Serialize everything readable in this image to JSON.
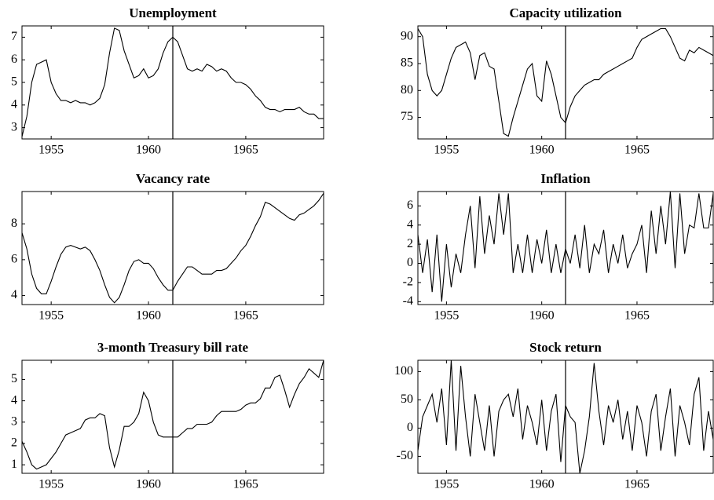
{
  "chart_data": [
    {
      "type": "line",
      "title": "Unemployment",
      "color": "#000000",
      "vline": 1961.25,
      "x": [
        1953.5,
        1953.75,
        1954,
        1954.25,
        1954.5,
        1954.75,
        1955,
        1955.25,
        1955.5,
        1955.75,
        1956,
        1956.25,
        1956.5,
        1956.75,
        1957,
        1957.25,
        1957.5,
        1957.75,
        1958,
        1958.25,
        1958.5,
        1958.75,
        1959,
        1959.25,
        1959.5,
        1959.75,
        1960,
        1960.25,
        1960.5,
        1960.75,
        1961,
        1961.25,
        1961.5,
        1961.75,
        1962,
        1962.25,
        1962.5,
        1962.75,
        1963,
        1963.25,
        1963.5,
        1963.75,
        1964,
        1964.25,
        1964.5,
        1964.75,
        1965,
        1965.25,
        1965.5,
        1965.75,
        1966,
        1966.25,
        1966.5,
        1966.75,
        1967,
        1967.25,
        1967.5,
        1967.75,
        1968,
        1968.25,
        1968.5,
        1968.75,
        1969
      ],
      "values": [
        2.6,
        3.5,
        5.0,
        5.8,
        5.9,
        6.0,
        5.0,
        4.5,
        4.2,
        4.2,
        4.1,
        4.2,
        4.1,
        4.1,
        4.0,
        4.1,
        4.3,
        4.9,
        6.3,
        7.4,
        7.3,
        6.4,
        5.8,
        5.2,
        5.3,
        5.6,
        5.2,
        5.3,
        5.6,
        6.3,
        6.8,
        7.0,
        6.8,
        6.2,
        5.6,
        5.5,
        5.6,
        5.5,
        5.8,
        5.7,
        5.5,
        5.6,
        5.5,
        5.2,
        5.0,
        5.0,
        4.9,
        4.7,
        4.4,
        4.2,
        3.9,
        3.8,
        3.8,
        3.7,
        3.8,
        3.8,
        3.8,
        3.9,
        3.7,
        3.6,
        3.6,
        3.4,
        3.4
      ],
      "xlim": [
        1953.5,
        1969
      ],
      "xticks": [
        1955,
        1960,
        1965
      ],
      "ylim": [
        2.5,
        7.5
      ],
      "yticks": [
        3,
        4,
        5,
        6,
        7
      ]
    },
    {
      "type": "line",
      "title": "Capacity utilization",
      "color": "#000000",
      "vline": 1961.25,
      "x": [
        1953.5,
        1953.75,
        1954,
        1954.25,
        1954.5,
        1954.75,
        1955,
        1955.25,
        1955.5,
        1955.75,
        1956,
        1956.25,
        1956.5,
        1956.75,
        1957,
        1957.25,
        1957.5,
        1957.75,
        1958,
        1958.25,
        1958.5,
        1958.75,
        1959,
        1959.25,
        1959.5,
        1959.75,
        1960,
        1960.25,
        1960.5,
        1960.75,
        1961,
        1961.25,
        1961.5,
        1961.75,
        1962,
        1962.25,
        1962.5,
        1962.75,
        1963,
        1963.25,
        1963.5,
        1963.75,
        1964,
        1964.25,
        1964.5,
        1964.75,
        1965,
        1965.25,
        1965.5,
        1965.75,
        1966,
        1966.25,
        1966.5,
        1966.75,
        1967,
        1967.25,
        1967.5,
        1967.75,
        1968,
        1968.25,
        1968.5,
        1968.75,
        1969
      ],
      "values": [
        91.5,
        90,
        83,
        80,
        79,
        80,
        83,
        86,
        88,
        88.5,
        89,
        87,
        82,
        86.5,
        87,
        84.5,
        84,
        78,
        72,
        71.5,
        75,
        78,
        81,
        84,
        85,
        79,
        78,
        85.5,
        83,
        79,
        75,
        74,
        77,
        79,
        80,
        81,
        81.5,
        82,
        82,
        83,
        83.5,
        84,
        84.5,
        85,
        85.5,
        86,
        88,
        89.5,
        90,
        90.5,
        91,
        91.5,
        91.5,
        90,
        88,
        86,
        85.5,
        87.5,
        87,
        88,
        87.5,
        87,
        86.5
      ],
      "xlim": [
        1953.5,
        1969
      ],
      "xticks": [
        1955,
        1960,
        1965
      ],
      "ylim": [
        71,
        92
      ],
      "yticks": [
        75,
        80,
        85,
        90
      ]
    },
    {
      "type": "line",
      "title": "Vacancy rate",
      "color": "#000000",
      "vline": 1961.25,
      "x": [
        1953.5,
        1953.75,
        1954,
        1954.25,
        1954.5,
        1954.75,
        1955,
        1955.25,
        1955.5,
        1955.75,
        1956,
        1956.25,
        1956.5,
        1956.75,
        1957,
        1957.25,
        1957.5,
        1957.75,
        1958,
        1958.25,
        1958.5,
        1958.75,
        1959,
        1959.25,
        1959.5,
        1959.75,
        1960,
        1960.25,
        1960.5,
        1960.75,
        1961,
        1961.25,
        1961.5,
        1961.75,
        1962,
        1962.25,
        1962.5,
        1962.75,
        1963,
        1963.25,
        1963.5,
        1963.75,
        1964,
        1964.25,
        1964.5,
        1964.75,
        1965,
        1965.25,
        1965.5,
        1965.75,
        1966,
        1966.25,
        1966.5,
        1966.75,
        1967,
        1967.25,
        1967.5,
        1967.75,
        1968,
        1968.25,
        1968.5,
        1968.75,
        1969
      ],
      "values": [
        7.5,
        6.6,
        5.2,
        4.4,
        4.1,
        4.1,
        4.8,
        5.6,
        6.3,
        6.7,
        6.8,
        6.7,
        6.6,
        6.7,
        6.5,
        6.0,
        5.4,
        4.6,
        3.9,
        3.6,
        3.9,
        4.6,
        5.4,
        5.9,
        6.0,
        5.8,
        5.8,
        5.5,
        5.0,
        4.6,
        4.3,
        4.3,
        4.8,
        5.2,
        5.6,
        5.6,
        5.4,
        5.2,
        5.2,
        5.2,
        5.4,
        5.4,
        5.5,
        5.8,
        6.1,
        6.5,
        6.8,
        7.3,
        7.9,
        8.4,
        9.2,
        9.1,
        8.9,
        8.7,
        8.5,
        8.3,
        8.2,
        8.5,
        8.6,
        8.8,
        9.0,
        9.3,
        9.7
      ],
      "xlim": [
        1953.5,
        1969
      ],
      "xticks": [
        1955,
        1960,
        1965
      ],
      "ylim": [
        3.5,
        9.8
      ],
      "yticks": [
        4,
        6,
        8
      ]
    },
    {
      "type": "line",
      "title": "Inflation",
      "color": "#000000",
      "vline": 1961.25,
      "x": [
        1953.5,
        1953.75,
        1954,
        1954.25,
        1954.5,
        1954.75,
        1955,
        1955.25,
        1955.5,
        1955.75,
        1956,
        1956.25,
        1956.5,
        1956.75,
        1957,
        1957.25,
        1957.5,
        1957.75,
        1958,
        1958.25,
        1958.5,
        1958.75,
        1959,
        1959.25,
        1959.5,
        1959.75,
        1960,
        1960.25,
        1960.5,
        1960.75,
        1961,
        1961.25,
        1961.5,
        1961.75,
        1962,
        1962.25,
        1962.5,
        1962.75,
        1963,
        1963.25,
        1963.5,
        1963.75,
        1964,
        1964.25,
        1964.5,
        1964.75,
        1965,
        1965.25,
        1965.5,
        1965.75,
        1966,
        1966.25,
        1966.5,
        1966.75,
        1967,
        1967.25,
        1967.5,
        1967.75,
        1968,
        1968.25,
        1968.5,
        1968.75,
        1969
      ],
      "values": [
        3,
        -1,
        2.5,
        -3,
        3,
        -4,
        2,
        -2.5,
        1,
        -1,
        3,
        6,
        -0.5,
        7,
        1,
        5,
        2,
        7.3,
        3,
        7.3,
        -1,
        2,
        -1,
        3,
        -1,
        2.5,
        0,
        3.5,
        -1,
        2,
        -1,
        1.5,
        0,
        3,
        -0.5,
        4,
        -1,
        2,
        1,
        3.5,
        -1,
        2,
        0,
        3,
        -0.5,
        1,
        2,
        4,
        -1,
        5.5,
        1,
        6,
        2,
        7.5,
        -0.5,
        7.3,
        1,
        4,
        3.7,
        7.3,
        3.7,
        3.7,
        7.3
      ],
      "xlim": [
        1953.5,
        1969
      ],
      "xticks": [
        1955,
        1960,
        1965
      ],
      "ylim": [
        -4.3,
        7.5
      ],
      "yticks": [
        -4,
        -2,
        0,
        2,
        4,
        6
      ]
    },
    {
      "type": "line",
      "title": "3-month Treasury bill rate",
      "color": "#000000",
      "vline": 1961.25,
      "x": [
        1953.5,
        1953.75,
        1954,
        1954.25,
        1954.5,
        1954.75,
        1955,
        1955.25,
        1955.5,
        1955.75,
        1956,
        1956.25,
        1956.5,
        1956.75,
        1957,
        1957.25,
        1957.5,
        1957.75,
        1958,
        1958.25,
        1958.5,
        1958.75,
        1959,
        1959.25,
        1959.5,
        1959.75,
        1960,
        1960.25,
        1960.5,
        1960.75,
        1961,
        1961.25,
        1961.5,
        1961.75,
        1962,
        1962.25,
        1962.5,
        1962.75,
        1963,
        1963.25,
        1963.5,
        1963.75,
        1964,
        1964.25,
        1964.5,
        1964.75,
        1965,
        1965.25,
        1965.5,
        1965.75,
        1966,
        1966.25,
        1966.5,
        1966.75,
        1967,
        1967.25,
        1967.5,
        1967.75,
        1968,
        1968.25,
        1968.5,
        1968.75,
        1969
      ],
      "values": [
        2.1,
        1.6,
        1.0,
        0.8,
        0.9,
        1.0,
        1.3,
        1.6,
        2.0,
        2.4,
        2.5,
        2.6,
        2.7,
        3.1,
        3.2,
        3.2,
        3.4,
        3.3,
        1.8,
        0.9,
        1.7,
        2.8,
        2.8,
        3.0,
        3.4,
        4.4,
        4.0,
        3.0,
        2.4,
        2.3,
        2.3,
        2.3,
        2.3,
        2.5,
        2.7,
        2.7,
        2.9,
        2.9,
        2.9,
        3.0,
        3.3,
        3.5,
        3.5,
        3.5,
        3.5,
        3.6,
        3.8,
        3.9,
        3.9,
        4.1,
        4.6,
        4.6,
        5.1,
        5.2,
        4.5,
        3.7,
        4.3,
        4.8,
        5.1,
        5.5,
        5.3,
        5.1,
        5.9
      ],
      "xlim": [
        1953.5,
        1969
      ],
      "xticks": [
        1955,
        1960,
        1965
      ],
      "ylim": [
        0.6,
        5.9
      ],
      "yticks": [
        1,
        2,
        3,
        4,
        5
      ]
    },
    {
      "type": "line",
      "title": "Stock return",
      "color": "#000000",
      "vline": 1961.25,
      "x": [
        1953.5,
        1953.75,
        1954,
        1954.25,
        1954.5,
        1954.75,
        1955,
        1955.25,
        1955.5,
        1955.75,
        1956,
        1956.25,
        1956.5,
        1956.75,
        1957,
        1957.25,
        1957.5,
        1957.75,
        1958,
        1958.25,
        1958.5,
        1958.75,
        1959,
        1959.25,
        1959.5,
        1959.75,
        1960,
        1960.25,
        1960.5,
        1960.75,
        1961,
        1961.25,
        1961.5,
        1961.75,
        1962,
        1962.25,
        1962.5,
        1962.75,
        1963,
        1963.25,
        1963.5,
        1963.75,
        1964,
        1964.25,
        1964.5,
        1964.75,
        1965,
        1965.25,
        1965.5,
        1965.75,
        1966,
        1966.25,
        1966.5,
        1966.75,
        1967,
        1967.25,
        1967.5,
        1967.75,
        1968,
        1968.25,
        1968.5,
        1968.75,
        1969
      ],
      "values": [
        -40,
        20,
        40,
        60,
        10,
        70,
        -30,
        120,
        -40,
        110,
        20,
        -50,
        60,
        10,
        -40,
        40,
        -50,
        30,
        50,
        60,
        20,
        70,
        -20,
        40,
        10,
        -30,
        50,
        -40,
        30,
        60,
        -60,
        40,
        20,
        10,
        -80,
        -40,
        20,
        115,
        30,
        -30,
        40,
        10,
        50,
        -20,
        30,
        -40,
        40,
        10,
        -50,
        30,
        60,
        -40,
        20,
        70,
        -50,
        40,
        10,
        -30,
        60,
        90,
        -40,
        30,
        -20
      ],
      "xlim": [
        1953.5,
        1969
      ],
      "xticks": [
        1955,
        1960,
        1965
      ],
      "ylim": [
        -80,
        120
      ],
      "yticks": [
        -50,
        0,
        50,
        100
      ]
    }
  ]
}
